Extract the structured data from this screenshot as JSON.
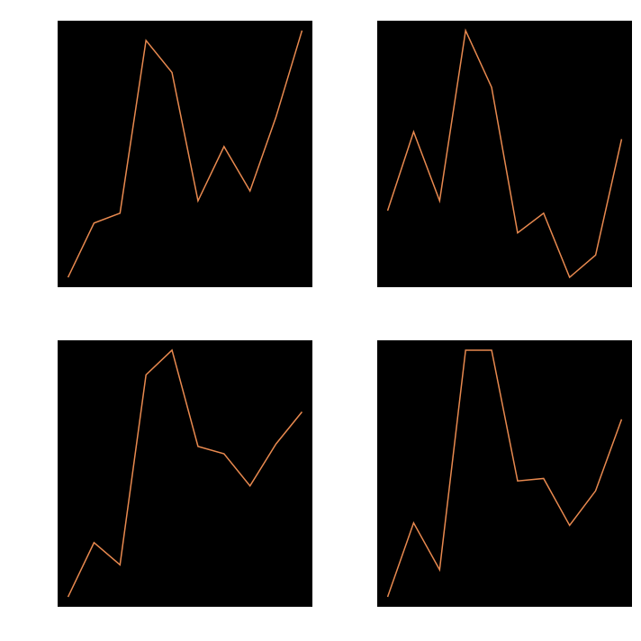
{
  "figure": {
    "background_color": "#ffffff",
    "panel_background_color": "#000000",
    "line_color": "#e8894f"
  },
  "chart_data": [
    {
      "type": "line",
      "position": "top-left",
      "grid": false,
      "legend": "none",
      "x": [
        0,
        1,
        2,
        3,
        4,
        5,
        6,
        7,
        8,
        9
      ],
      "series": [
        {
          "values": [
            0.0,
            0.22,
            0.26,
            0.96,
            0.83,
            0.31,
            0.53,
            0.35,
            0.65,
            1.0
          ]
        }
      ],
      "xlim": [
        -0.4,
        9.4
      ],
      "ylim": [
        -0.04,
        1.04
      ]
    },
    {
      "type": "line",
      "position": "top-right",
      "grid": false,
      "legend": "none",
      "x": [
        0,
        1,
        2,
        3,
        4,
        5,
        6,
        7,
        8,
        9
      ],
      "series": [
        {
          "values": [
            0.27,
            0.59,
            0.31,
            1.0,
            0.77,
            0.18,
            0.26,
            0.0,
            0.09,
            0.56
          ]
        }
      ],
      "xlim": [
        -0.4,
        9.4
      ],
      "ylim": [
        -0.04,
        1.04
      ]
    },
    {
      "type": "line",
      "position": "bottom-left",
      "grid": false,
      "legend": "none",
      "x": [
        0,
        1,
        2,
        3,
        4,
        5,
        6,
        7,
        8,
        9
      ],
      "series": [
        {
          "values": [
            0.0,
            0.22,
            0.13,
            0.9,
            1.0,
            0.61,
            0.58,
            0.45,
            0.62,
            0.75
          ]
        }
      ],
      "xlim": [
        -0.4,
        9.4
      ],
      "ylim": [
        -0.04,
        1.04
      ]
    },
    {
      "type": "line",
      "position": "bottom-right",
      "grid": false,
      "legend": "none",
      "x": [
        0,
        1,
        2,
        3,
        4,
        5,
        6,
        7,
        8,
        9
      ],
      "series": [
        {
          "values": [
            0.0,
            0.3,
            0.11,
            1.0,
            1.0,
            0.47,
            0.48,
            0.29,
            0.43,
            0.72
          ]
        }
      ],
      "xlim": [
        -0.4,
        9.4
      ],
      "ylim": [
        -0.04,
        1.04
      ]
    }
  ]
}
